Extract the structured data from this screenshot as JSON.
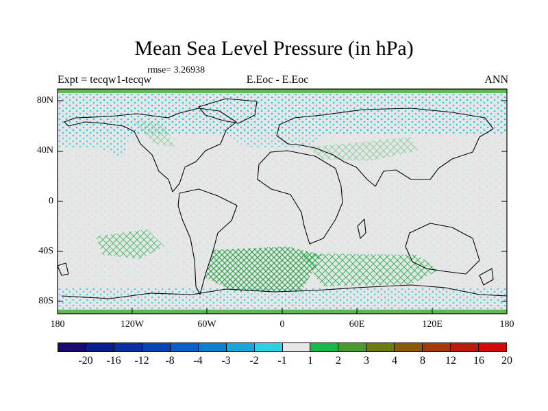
{
  "title": "Mean Sea Level Pressure (in hPa)",
  "rmse": "rmse= 3.26938",
  "left_label": "Expt = tecqw1-tecqw",
  "center_label": "E.Eoc - E.Eoc",
  "right_label": "ANN",
  "lat_ticks": [
    "80N",
    "40N",
    "0",
    "40S",
    "80S"
  ],
  "lon_ticks": [
    "180",
    "120W",
    "60W",
    "0",
    "60E",
    "120E",
    "180"
  ],
  "colorbar": {
    "labels": [
      "-20",
      "-16",
      "-12",
      "-8",
      "-4",
      "-3",
      "-2",
      "-1",
      "1",
      "2",
      "3",
      "4",
      "8",
      "12",
      "16",
      "20"
    ],
    "colors": [
      "#1a0a6e",
      "#0c1d8c",
      "#0a31a0",
      "#0a45b4",
      "#0c5ec8",
      "#0e7fc8",
      "#1aa6d6",
      "#2ad2e4",
      "#e6e6e6",
      "#1ab84a",
      "#4a9a30",
      "#6e7a16",
      "#8a5a0a",
      "#a43a0a",
      "#bc1a0a",
      "#d40a0a"
    ]
  },
  "map_colors": {
    "ocean": "#e6e6e6",
    "coast": "#000000",
    "negative": "#2ac8e0",
    "positive": "#22b04a",
    "border_band": "#4caf3a"
  }
}
